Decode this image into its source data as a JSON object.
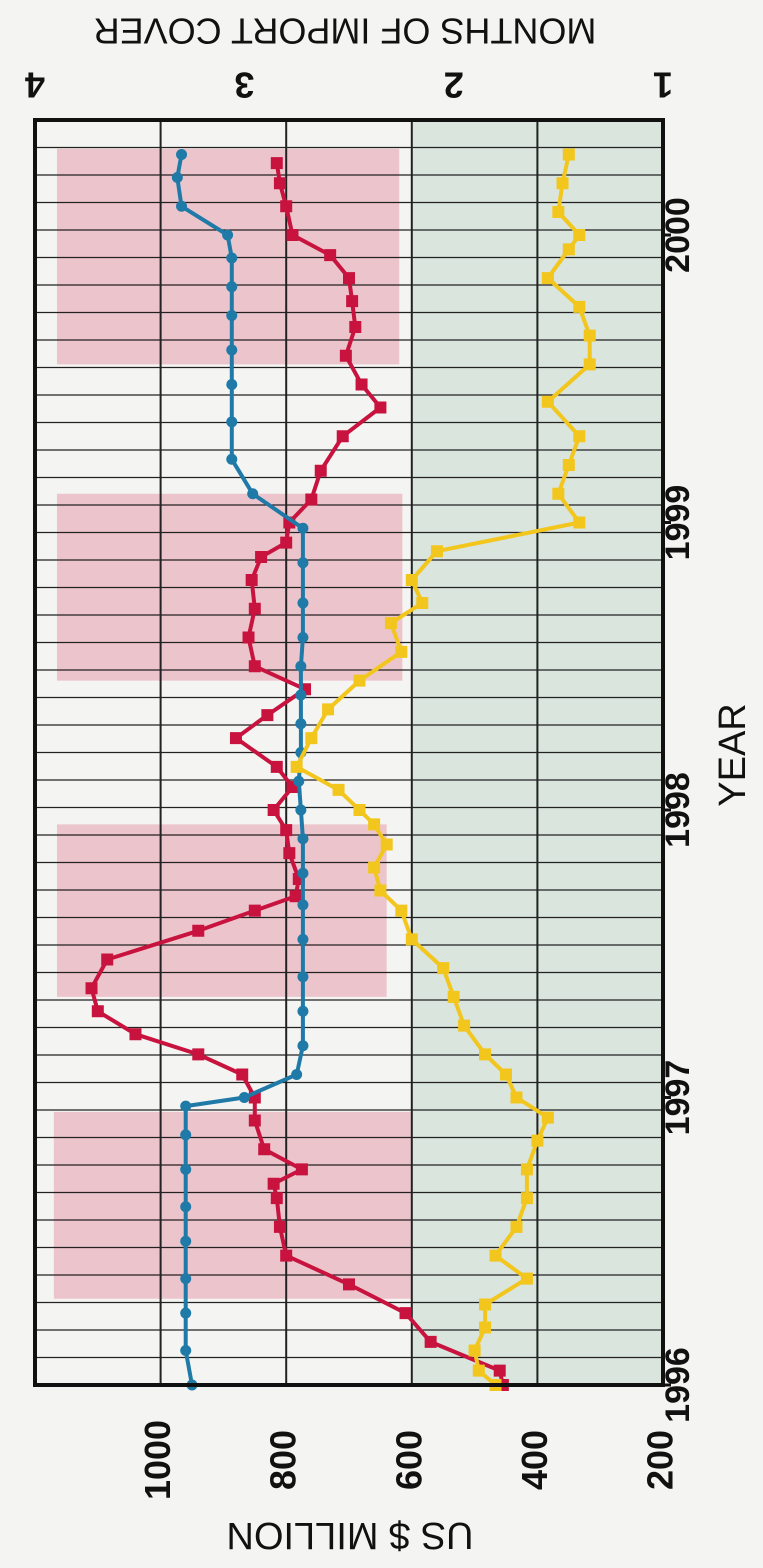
{
  "chart_data": {
    "type": "line",
    "orientation": "rotated 90° clockwise",
    "x_axis": {
      "label": "YEAR",
      "ticks": [
        "1996",
        "1997",
        "1998",
        "1999",
        "2000"
      ],
      "range": [
        1996.0,
        2000.4
      ]
    },
    "y_axis_left": {
      "label": "US $ MILLION",
      "ticks": [
        "200",
        "400",
        "600",
        "800",
        "1000"
      ],
      "range": [
        200,
        1200
      ]
    },
    "y_axis_right": {
      "label": "MONTHS OF IMPORT COVER",
      "ticks": [
        "1",
        "2",
        "3",
        "4"
      ],
      "range": [
        1,
        4
      ]
    },
    "grid": true,
    "series": [
      {
        "color": "#c8133f",
        "axis": "left",
        "x": [
          1996.0,
          1996.05,
          1996.15,
          1996.25,
          1996.35,
          1996.45,
          1996.55,
          1996.65,
          1996.7,
          1996.75,
          1996.82,
          1996.92,
          1997.0,
          1997.08,
          1997.15,
          1997.22,
          1997.3,
          1997.38,
          1997.48,
          1997.58,
          1997.65,
          1997.7,
          1997.76,
          1997.85,
          1997.93,
          1998.0,
          1998.08,
          1998.15,
          1998.25,
          1998.33,
          1998.42,
          1998.5,
          1998.6,
          1998.7,
          1998.8,
          1998.88,
          1998.93,
          1999.0,
          1999.08,
          1999.18,
          1999.3,
          1999.4,
          1999.48,
          1999.58,
          1999.68,
          1999.77,
          1999.85,
          1999.93,
          2000.0,
          2000.1,
          2000.18,
          2000.25
        ],
        "values": [
          455,
          460,
          570,
          610,
          700,
          800,
          810,
          815,
          820,
          775,
          835,
          850,
          850,
          870,
          940,
          1040,
          1100,
          1110,
          1085,
          940,
          850,
          785,
          780,
          795,
          800,
          820,
          790,
          815,
          880,
          830,
          770,
          850,
          860,
          850,
          855,
          840,
          800,
          795,
          760,
          745,
          710,
          650,
          680,
          705,
          690,
          695,
          700,
          730,
          790,
          800,
          810,
          815
        ]
      },
      {
        "color": "#1f7aa8",
        "axis": "right",
        "x": [
          1996.0,
          1996.12,
          1996.25,
          1996.37,
          1996.5,
          1996.62,
          1996.75,
          1996.87,
          1996.97,
          1997.0,
          1997.08,
          1997.18,
          1997.3,
          1997.42,
          1997.55,
          1997.67,
          1997.78,
          1997.9,
          1998.0,
          1998.1,
          1998.2,
          1998.3,
          1998.4,
          1998.5,
          1998.6,
          1998.72,
          1998.86,
          1998.98,
          1999.1,
          1999.22,
          1999.35,
          1999.48,
          1999.6,
          1999.72,
          1999.82,
          1999.92,
          2000.0,
          2000.1,
          2000.2,
          2000.28
        ],
        "values": [
          3.25,
          3.28,
          3.28,
          3.28,
          3.28,
          3.28,
          3.28,
          3.28,
          3.28,
          3.0,
          2.75,
          2.72,
          2.72,
          2.72,
          2.72,
          2.72,
          2.72,
          2.72,
          2.73,
          2.74,
          2.73,
          2.73,
          2.73,
          2.73,
          2.72,
          2.72,
          2.72,
          2.72,
          2.96,
          3.06,
          3.06,
          3.06,
          3.06,
          3.06,
          3.06,
          3.06,
          3.08,
          3.3,
          3.32,
          3.3
        ]
      },
      {
        "color": "#f2c61c",
        "axis": "right",
        "x": [
          1996.0,
          1996.05,
          1996.12,
          1996.2,
          1996.28,
          1996.37,
          1996.45,
          1996.55,
          1996.65,
          1996.75,
          1996.85,
          1996.93,
          1997.0,
          1997.08,
          1997.15,
          1997.25,
          1997.35,
          1997.45,
          1997.55,
          1997.65,
          1997.72,
          1997.8,
          1997.88,
          1997.95,
          1998.0,
          1998.07,
          1998.15,
          1998.25,
          1998.35,
          1998.45,
          1998.55,
          1998.65,
          1998.72,
          1998.8,
          1998.9,
          1999.0,
          1999.1,
          1999.2,
          1999.3,
          1999.42,
          1999.55,
          1999.65,
          1999.75,
          1999.85,
          1999.95,
          2000.0,
          2000.08,
          2000.18,
          2000.28
        ],
        "values": [
          1.8,
          1.88,
          1.9,
          1.85,
          1.85,
          1.65,
          1.8,
          1.7,
          1.65,
          1.65,
          1.6,
          1.55,
          1.7,
          1.75,
          1.85,
          1.95,
          2.0,
          2.05,
          2.2,
          2.25,
          2.35,
          2.38,
          2.32,
          2.38,
          2.45,
          2.55,
          2.75,
          2.68,
          2.6,
          2.45,
          2.25,
          2.3,
          2.15,
          2.2,
          2.08,
          1.4,
          1.5,
          1.45,
          1.4,
          1.55,
          1.35,
          1.35,
          1.4,
          1.55,
          1.45,
          1.4,
          1.5,
          1.48,
          1.45
        ]
      }
    ],
    "bands": [
      {
        "x": [
          1996.3,
          1996.95
        ],
        "y": [
          600,
          1170
        ],
        "color": "#e28b9e"
      },
      {
        "x": [
          1997.35,
          1997.95
        ],
        "y": [
          640,
          1165
        ],
        "color": "#e28b9e"
      },
      {
        "x": [
          1998.45,
          1999.1
        ],
        "y": [
          615,
          1165
        ],
        "color": "#e28b9e"
      },
      {
        "x": [
          1999.55,
          2000.3
        ],
        "y": [
          620,
          1165
        ],
        "color": "#e28b9e"
      },
      {
        "x": [
          1996.0,
          2000.4
        ],
        "y": [
          200,
          600
        ],
        "color": "#b9d2c4"
      }
    ]
  }
}
